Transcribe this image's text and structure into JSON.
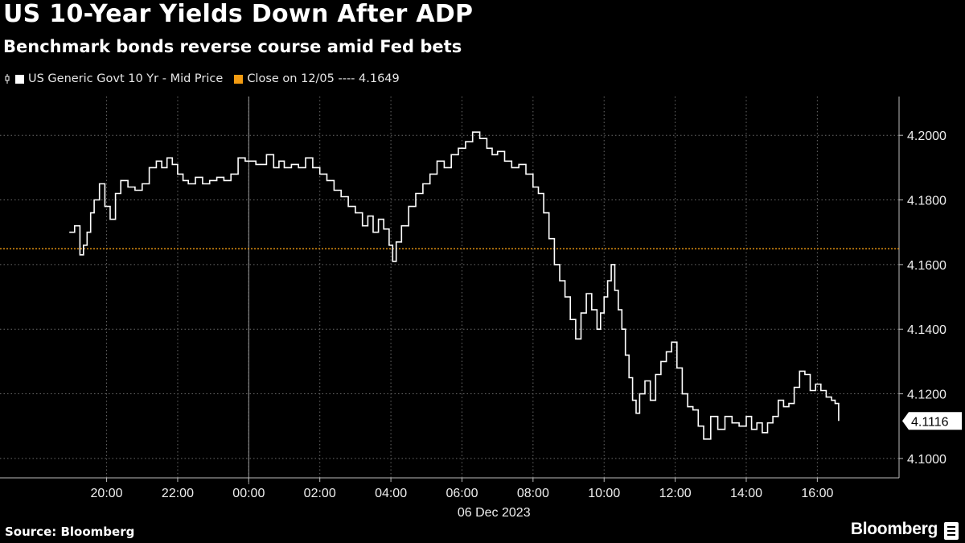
{
  "header": {
    "title": "US 10-Year Yields Down After ADP",
    "subtitle": "Benchmark bonds reverse course amid Fed bets"
  },
  "legend": {
    "series_label": "US Generic Govt 10 Yr - Mid Price",
    "close_label": "Close on 12/05 ---- 4.1649",
    "series_color": "#ffffff",
    "close_color": "#f39c12"
  },
  "footer": {
    "source": "Source: Bloomberg",
    "brand": "Bloomberg"
  },
  "chart_data": {
    "type": "line",
    "title": "US 10-Year Yields Down After ADP",
    "subtitle": "Benchmark bonds reverse course amid Fed bets",
    "xlabel": "06 Dec 2023",
    "ylabel": "",
    "x_ticks": [
      "20:00",
      "22:00",
      "00:00",
      "02:00",
      "04:00",
      "06:00",
      "08:00",
      "10:00",
      "12:00",
      "14:00",
      "16:00"
    ],
    "x_tick_hours": [
      20,
      22,
      24,
      26,
      28,
      30,
      32,
      34,
      36,
      38,
      40
    ],
    "xlim_hours": [
      17.0,
      42.3
    ],
    "y_ticks": [
      "4.1000",
      "4.1200",
      "4.1400",
      "4.1600",
      "4.1800",
      "4.2000"
    ],
    "y_tick_values": [
      4.1,
      4.12,
      4.14,
      4.16,
      4.18,
      4.2
    ],
    "ylim": [
      4.094,
      4.212
    ],
    "grid": true,
    "reference_line": {
      "label": "Close on 12/05",
      "value": 4.1649
    },
    "last_value_label": "4.1116",
    "last_value": 4.1116,
    "series": [
      {
        "name": "US Generic Govt 10 Yr - Mid Price",
        "x": [
          18.95,
          19.1,
          19.25,
          19.35,
          19.45,
          19.55,
          19.65,
          19.8,
          19.95,
          20.1,
          20.25,
          20.4,
          20.6,
          20.8,
          21.0,
          21.2,
          21.4,
          21.55,
          21.7,
          21.85,
          22.0,
          22.15,
          22.3,
          22.5,
          22.7,
          22.9,
          23.1,
          23.3,
          23.5,
          23.7,
          23.9,
          24.2,
          24.5,
          24.7,
          24.85,
          25.0,
          25.2,
          25.4,
          25.6,
          25.8,
          26.0,
          26.2,
          26.4,
          26.6,
          26.8,
          27.0,
          27.2,
          27.35,
          27.5,
          27.65,
          27.8,
          27.95,
          28.05,
          28.15,
          28.3,
          28.5,
          28.7,
          28.9,
          29.1,
          29.3,
          29.5,
          29.7,
          29.9,
          30.1,
          30.3,
          30.5,
          30.7,
          30.85,
          31.0,
          31.2,
          31.4,
          31.6,
          31.8,
          32.0,
          32.15,
          32.3,
          32.45,
          32.6,
          32.75,
          32.9,
          33.05,
          33.2,
          33.35,
          33.5,
          33.65,
          33.8,
          33.9,
          34.0,
          34.1,
          34.2,
          34.3,
          34.4,
          34.5,
          34.6,
          34.7,
          34.8,
          34.9,
          35.0,
          35.15,
          35.3,
          35.45,
          35.6,
          35.75,
          35.9,
          36.05,
          36.2,
          36.35,
          36.5,
          36.65,
          36.8,
          37.0,
          37.2,
          37.4,
          37.6,
          37.8,
          38.0,
          38.15,
          38.3,
          38.45,
          38.6,
          38.75,
          38.9,
          39.05,
          39.2,
          39.35,
          39.5,
          39.65,
          39.8,
          39.95,
          40.1,
          40.25,
          40.4,
          40.5,
          40.6
        ],
        "y": [
          4.17,
          4.172,
          4.163,
          4.166,
          4.17,
          4.176,
          4.18,
          4.185,
          4.178,
          4.174,
          4.182,
          4.186,
          4.184,
          4.183,
          4.185,
          4.19,
          4.192,
          4.19,
          4.193,
          4.191,
          4.188,
          4.186,
          4.185,
          4.187,
          4.185,
          4.186,
          4.187,
          4.186,
          4.188,
          4.193,
          4.192,
          4.191,
          4.194,
          4.19,
          4.192,
          4.19,
          4.191,
          4.19,
          4.193,
          4.19,
          4.188,
          4.186,
          4.183,
          4.181,
          4.178,
          4.176,
          4.172,
          4.175,
          4.17,
          4.174,
          4.171,
          4.166,
          4.161,
          4.167,
          4.172,
          4.178,
          4.182,
          4.185,
          4.188,
          4.192,
          4.19,
          4.194,
          4.196,
          4.198,
          4.201,
          4.199,
          4.196,
          4.194,
          4.195,
          4.192,
          4.19,
          4.191,
          4.188,
          4.184,
          4.182,
          4.176,
          4.168,
          4.16,
          4.155,
          4.15,
          4.143,
          4.137,
          4.145,
          4.151,
          4.146,
          4.14,
          4.145,
          4.15,
          4.155,
          4.16,
          4.152,
          4.146,
          4.14,
          4.132,
          4.125,
          4.118,
          4.114,
          4.12,
          4.124,
          4.118,
          4.126,
          4.13,
          4.133,
          4.136,
          4.128,
          4.12,
          4.116,
          4.115,
          4.11,
          4.106,
          4.113,
          4.109,
          4.113,
          4.111,
          4.11,
          4.113,
          4.109,
          4.111,
          4.108,
          4.111,
          4.113,
          4.118,
          4.116,
          4.117,
          4.122,
          4.127,
          4.126,
          4.121,
          4.123,
          4.121,
          4.119,
          4.118,
          4.117,
          4.1116
        ]
      }
    ]
  }
}
